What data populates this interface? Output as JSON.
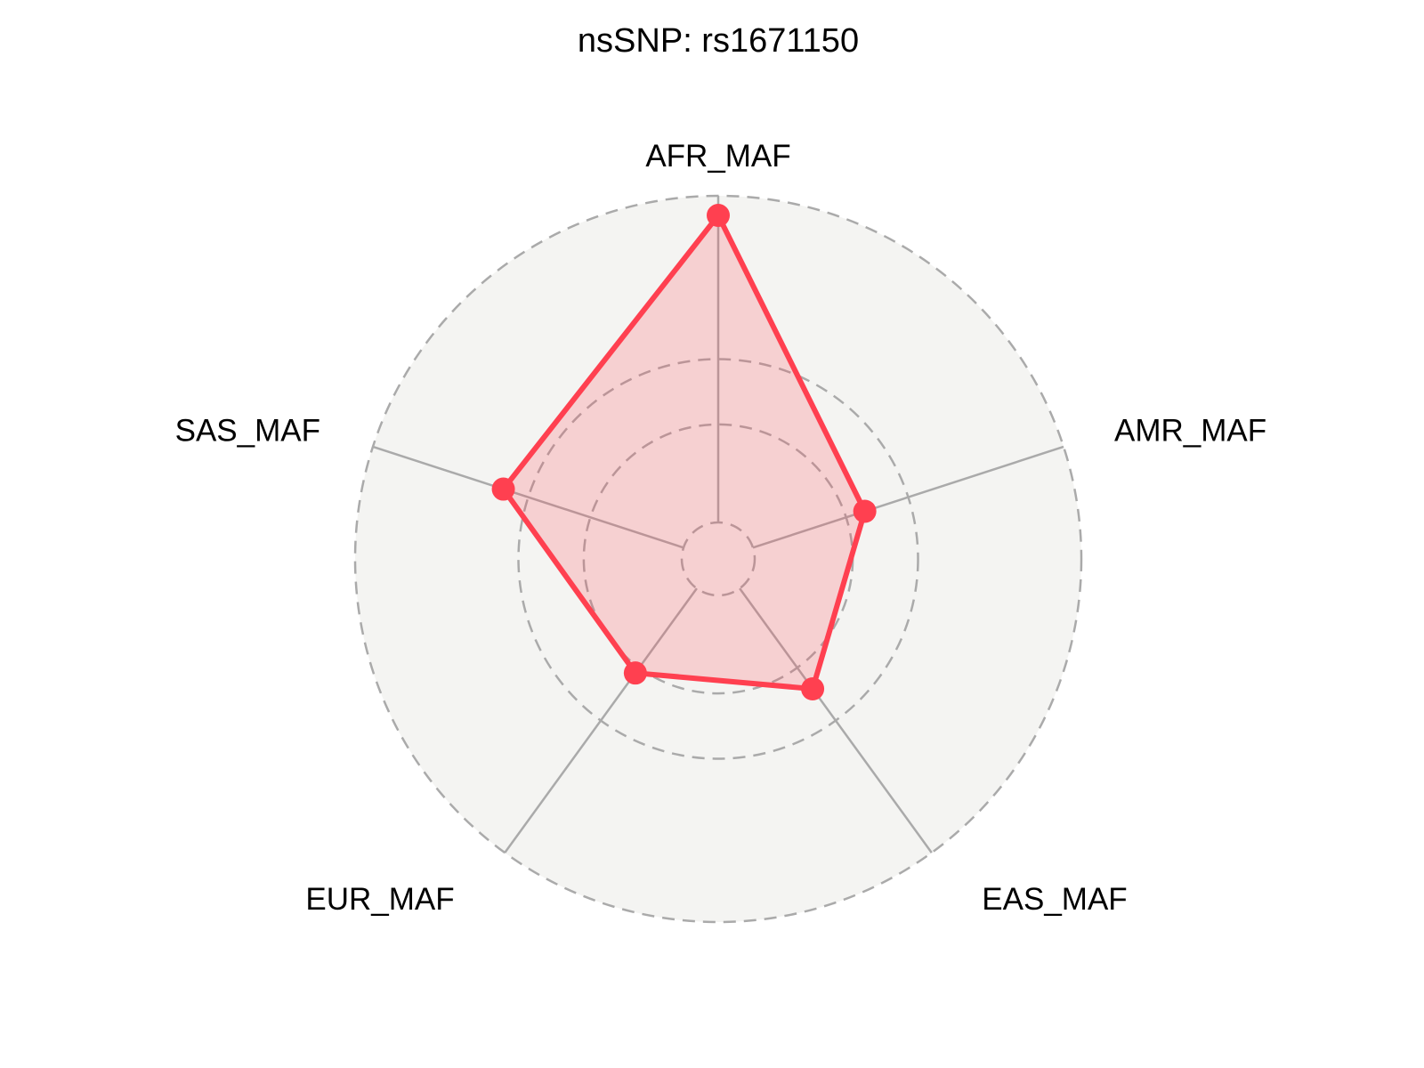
{
  "chart_data": {
    "type": "radar",
    "title": "nsSNP: rs1671150",
    "axes": [
      "AFR_MAF",
      "AMR_MAF",
      "EAS_MAF",
      "EUR_MAF",
      "SAS_MAF"
    ],
    "values": [
      0.94,
      0.36,
      0.38,
      0.32,
      0.58
    ],
    "rlim": [
      0,
      1
    ],
    "grid_values": [
      0,
      0.3,
      0.5,
      1
    ],
    "grid": true,
    "grid_style": "dashed",
    "colors": {
      "series": "#ff4050",
      "fill": "#f5d0d2",
      "background": "#f4f4f2",
      "grid": "#aaaaaa"
    }
  }
}
